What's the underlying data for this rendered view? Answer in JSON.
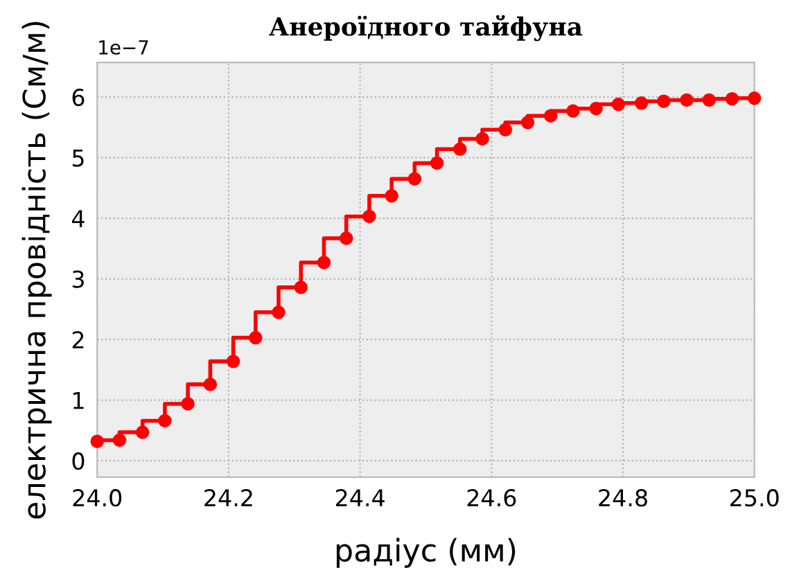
{
  "chart_data": {
    "type": "step",
    "title": "Анероїдного тайфуна",
    "xlabel": "радіус (мм)",
    "ylabel": "електрична провідність (См/м)",
    "annotations": [
      "1e−7"
    ],
    "x": [
      24.0,
      24.034,
      24.069,
      24.103,
      24.138,
      24.172,
      24.207,
      24.241,
      24.276,
      24.31,
      24.345,
      24.379,
      24.414,
      24.448,
      24.483,
      24.517,
      24.552,
      24.586,
      24.621,
      24.655,
      24.69,
      24.724,
      24.759,
      24.793,
      24.828,
      24.862,
      24.897,
      24.931,
      24.966,
      25.0
    ],
    "series": [
      {
        "color": "#ff0000",
        "values": [
          0.32,
          0.34,
          0.47,
          0.66,
          0.94,
          1.26,
          1.64,
          2.03,
          2.45,
          2.86,
          3.27,
          3.67,
          4.03,
          4.37,
          4.65,
          4.91,
          5.14,
          5.31,
          5.46,
          5.58,
          5.69,
          5.77,
          5.81,
          5.88,
          5.9,
          5.93,
          5.95,
          5.95,
          5.97,
          5.98
        ]
      }
    ],
    "xlim": [
      24.0,
      25.0
    ],
    "xticks": [
      {
        "value": 24,
        "label": "24.0"
      },
      24.2,
      24.4,
      24.6,
      24.8,
      {
        "value": 25,
        "label": "25.0"
      }
    ],
    "ylim": [
      -0.27,
      6.57
    ],
    "yticks": [
      0,
      1,
      2,
      3,
      4,
      5,
      6
    ],
    "grid": true,
    "marker": "circle",
    "line_style": "solid"
  }
}
